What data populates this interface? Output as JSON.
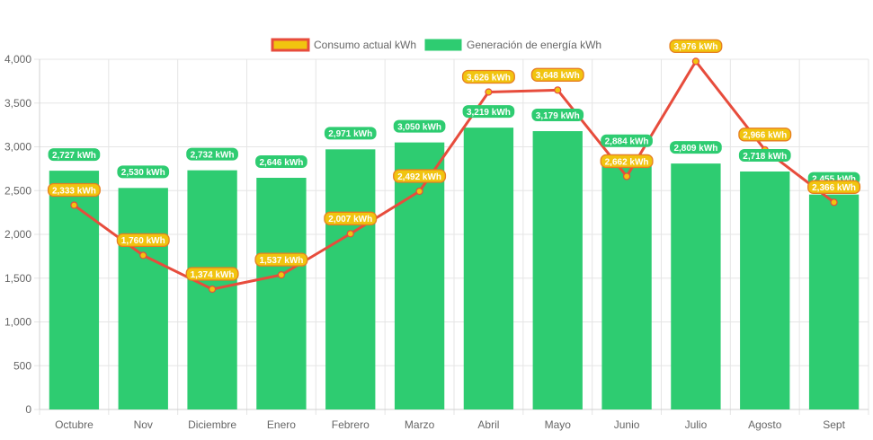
{
  "chart_data": {
    "type": "bar",
    "categories": [
      "Octubre",
      "Nov",
      "Diciembre",
      "Enero",
      "Febrero",
      "Marzo",
      "Abril",
      "Mayo",
      "Junio",
      "Julio",
      "Agosto",
      "Sept"
    ],
    "series": [
      {
        "name": "Generación de energía kWh",
        "kind": "bar",
        "color": "#2ecc71",
        "values": [
          2727,
          2530,
          2732,
          2646,
          2971,
          3050,
          3219,
          3179,
          2884,
          2809,
          2718,
          2455
        ],
        "labels": [
          "2,727 kWh",
          "2,530 kWh",
          "2,732 kWh",
          "2,646 kWh",
          "2,971 kWh",
          "3,050 kWh",
          "3,219 kWh",
          "3,179 kWh",
          "2,884 kWh",
          "2,809 kWh",
          "2,718 kWh",
          "2,455 kWh"
        ]
      },
      {
        "name": "Consumo actual kWh",
        "kind": "line",
        "color": "#e74c3c",
        "marker_color": "#f1c40f",
        "values": [
          2333,
          1760,
          1374,
          1537,
          2007,
          2492,
          3626,
          3648,
          2662,
          3976,
          2966,
          2366
        ],
        "labels": [
          "2,333 kWh",
          "1,760 kWh",
          "1,374 kWh",
          "1,537 kWh",
          "2,007 kWh",
          "2,492 kWh",
          "3,626 kWh",
          "3,648 kWh",
          "2,662 kWh",
          "3,976 kWh",
          "2,966 kWh",
          "2,366 kWh"
        ]
      }
    ],
    "ylim": [
      0,
      4000
    ],
    "yticks": [
      0,
      500,
      1000,
      1500,
      2000,
      2500,
      3000,
      3500,
      4000
    ],
    "ytick_labels": [
      "0",
      "500",
      "1,000",
      "1,500",
      "2,000",
      "2,500",
      "3,000",
      "3,500",
      "4,000"
    ],
    "grid": true,
    "legend_position": "top-center"
  }
}
